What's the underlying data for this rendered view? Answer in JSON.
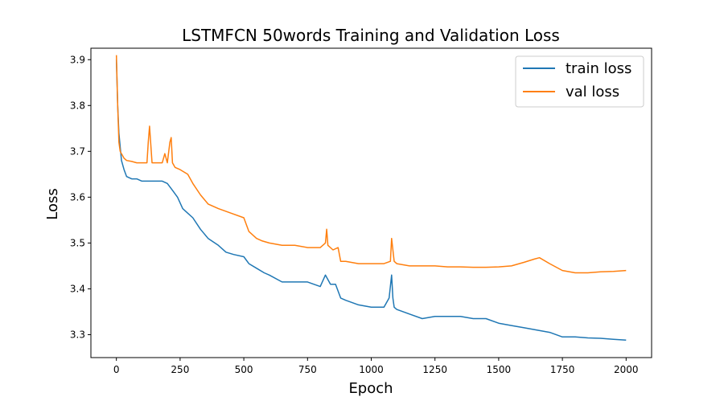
{
  "chart_data": {
    "type": "line",
    "title": "LSTMFCN 50words Training and Validation Loss",
    "xlabel": "Epoch",
    "ylabel": "Loss",
    "xlim": [
      -100,
      2100
    ],
    "ylim": [
      3.25,
      3.925
    ],
    "xticks": [
      0,
      250,
      500,
      750,
      1000,
      1250,
      1500,
      1750,
      2000
    ],
    "yticks": [
      3.3,
      3.4,
      3.5,
      3.6,
      3.7,
      3.8,
      3.9
    ],
    "xtick_labels": [
      "0",
      "250",
      "500",
      "750",
      "1000",
      "1250",
      "1500",
      "1750",
      "2000"
    ],
    "ytick_labels": [
      "3.3",
      "3.4",
      "3.5",
      "3.6",
      "3.7",
      "3.8",
      "3.9"
    ],
    "grid": false,
    "legend_position": "top-right",
    "series": [
      {
        "name": "train loss",
        "color": "#1f77b4",
        "x": [
          0,
          5,
          10,
          15,
          20,
          30,
          40,
          60,
          80,
          100,
          130,
          150,
          180,
          200,
          220,
          240,
          260,
          280,
          300,
          330,
          360,
          400,
          430,
          460,
          500,
          520,
          550,
          580,
          600,
          650,
          700,
          750,
          800,
          820,
          840,
          860,
          880,
          900,
          950,
          1000,
          1050,
          1070,
          1080,
          1085,
          1090,
          1100,
          1150,
          1200,
          1250,
          1300,
          1350,
          1400,
          1450,
          1500,
          1550,
          1600,
          1650,
          1700,
          1750,
          1800,
          1850,
          1900,
          1950,
          2000
        ],
        "y": [
          3.9,
          3.8,
          3.74,
          3.71,
          3.68,
          3.66,
          3.645,
          3.64,
          3.64,
          3.635,
          3.635,
          3.635,
          3.635,
          3.63,
          3.615,
          3.6,
          3.575,
          3.565,
          3.555,
          3.53,
          3.51,
          3.495,
          3.48,
          3.475,
          3.47,
          3.455,
          3.445,
          3.435,
          3.43,
          3.415,
          3.415,
          3.415,
          3.405,
          3.43,
          3.41,
          3.41,
          3.38,
          3.375,
          3.365,
          3.36,
          3.36,
          3.38,
          3.43,
          3.38,
          3.36,
          3.355,
          3.345,
          3.335,
          3.34,
          3.34,
          3.34,
          3.335,
          3.335,
          3.325,
          3.32,
          3.315,
          3.31,
          3.305,
          3.295,
          3.295,
          3.293,
          3.292,
          3.29,
          3.288
        ]
      },
      {
        "name": "val loss",
        "color": "#ff7f0e",
        "x": [
          0,
          5,
          10,
          15,
          20,
          30,
          40,
          60,
          80,
          100,
          120,
          125,
          130,
          140,
          180,
          190,
          200,
          210,
          215,
          220,
          230,
          250,
          280,
          300,
          330,
          360,
          400,
          450,
          500,
          520,
          550,
          570,
          600,
          650,
          700,
          750,
          800,
          820,
          825,
          830,
          850,
          870,
          880,
          900,
          950,
          1000,
          1050,
          1075,
          1080,
          1090,
          1100,
          1150,
          1200,
          1250,
          1300,
          1350,
          1400,
          1450,
          1500,
          1550,
          1600,
          1640,
          1660,
          1700,
          1750,
          1800,
          1850,
          1900,
          1950,
          2000
        ],
        "y": [
          3.91,
          3.8,
          3.72,
          3.7,
          3.695,
          3.685,
          3.68,
          3.678,
          3.675,
          3.675,
          3.675,
          3.72,
          3.755,
          3.675,
          3.675,
          3.695,
          3.675,
          3.72,
          3.73,
          3.675,
          3.665,
          3.66,
          3.65,
          3.63,
          3.605,
          3.585,
          3.575,
          3.565,
          3.555,
          3.525,
          3.51,
          3.505,
          3.5,
          3.495,
          3.495,
          3.49,
          3.49,
          3.5,
          3.53,
          3.495,
          3.485,
          3.49,
          3.46,
          3.46,
          3.455,
          3.455,
          3.455,
          3.46,
          3.51,
          3.46,
          3.455,
          3.45,
          3.45,
          3.45,
          3.448,
          3.448,
          3.447,
          3.447,
          3.448,
          3.45,
          3.458,
          3.465,
          3.468,
          3.455,
          3.44,
          3.435,
          3.435,
          3.437,
          3.438,
          3.44
        ]
      }
    ]
  }
}
